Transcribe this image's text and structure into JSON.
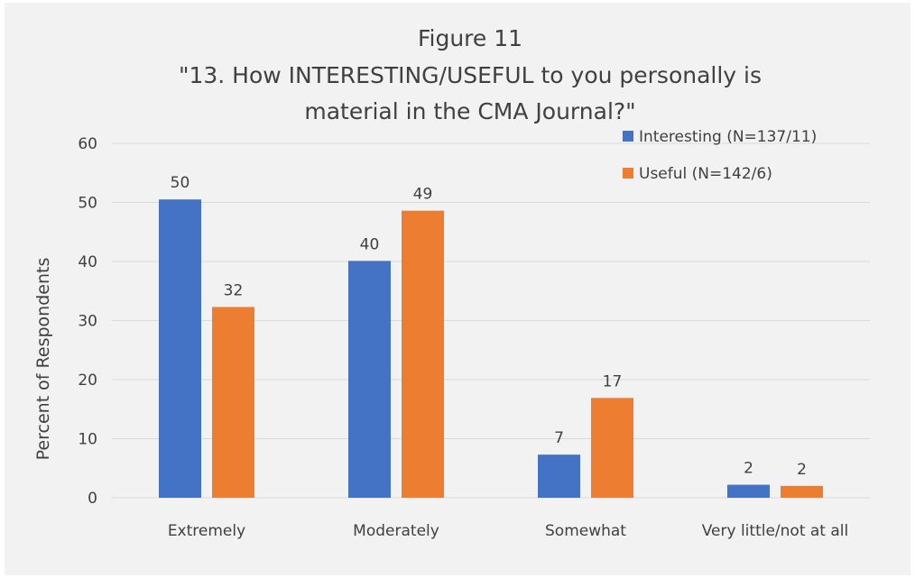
{
  "colors": {
    "background": "#f2f2f2",
    "gridline": "#d9d9d9",
    "text": "#404040",
    "interesting": "#4472c4",
    "useful": "#ed7d31"
  },
  "chart_data": {
    "type": "bar",
    "title_lines": [
      "Figure 11",
      "\"13. How INTERESTING/USEFUL to you personally is",
      "material in the CMA Journal?\""
    ],
    "xlabel": "",
    "ylabel": "Percent of Respondents",
    "ylim": [
      0,
      60
    ],
    "yticks": [
      0,
      10,
      20,
      30,
      40,
      50,
      60
    ],
    "grid": true,
    "legend_position": "top-right",
    "categories": [
      "Extremely",
      "Moderately",
      "Somewhat",
      "Very little/not at all"
    ],
    "series": [
      {
        "name": "Interesting (N=137/11)",
        "values": [
          50.5,
          40.1,
          7.3,
          2.2
        ],
        "labels": [
          "50",
          "40",
          "7",
          "2"
        ],
        "color": "#4472c4"
      },
      {
        "name": "Useful (N=142/6)",
        "values": [
          32.3,
          48.6,
          16.9,
          2.0
        ],
        "labels": [
          "32",
          "49",
          "17",
          "2"
        ],
        "color": "#ed7d31"
      }
    ]
  }
}
